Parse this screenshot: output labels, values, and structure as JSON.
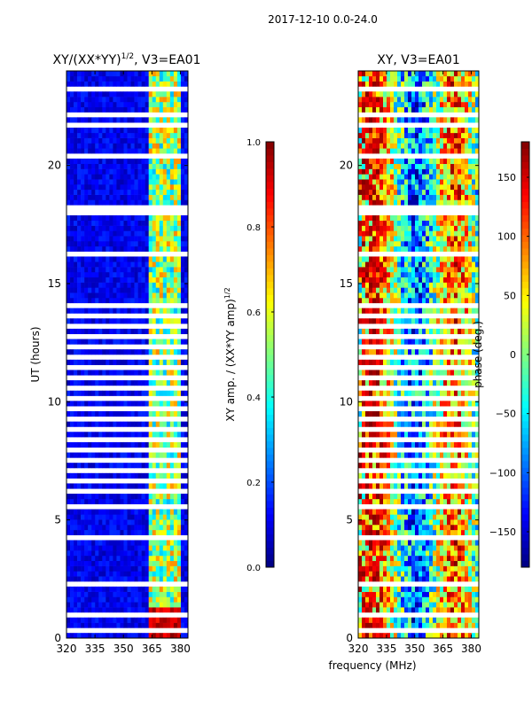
{
  "figure": {
    "suptitle": "2017-12-10 0.0-24.0",
    "shared_xlabel": "frequency (MHz)"
  },
  "chart_data": [
    {
      "type": "heatmap",
      "title": "XY/(XX*YY)",
      "title_superscript": "1/2",
      "title_suffix": ", V3=EA01",
      "xlabel": "",
      "ylabel": "UT (hours)",
      "xlim": [
        320,
        384
      ],
      "ylim": [
        0,
        24
      ],
      "xticks": [
        320,
        335,
        350,
        365,
        380
      ],
      "yticks": [
        0,
        5,
        10,
        15,
        20
      ],
      "colorbar": {
        "label": "XY amp. / (XX*YY amp)",
        "label_superscript": "1/2",
        "range": [
          0.0,
          1.0
        ],
        "ticks": [
          "0.0",
          "0.2",
          "0.4",
          "0.6",
          "0.8",
          "1.0"
        ],
        "ticks_values": [
          0.0,
          0.2,
          0.4,
          0.6,
          0.8,
          1.0
        ],
        "colormap": "jet"
      },
      "flagged_hours": [
        0.3,
        0.95,
        1.05,
        2.3,
        4.3,
        5.6,
        7.6,
        9.8,
        10.6,
        11.4,
        12.4,
        13.2,
        14.0,
        16.3,
        18.1,
        18.3,
        20.3,
        21.6,
        22.1,
        23.3
      ],
      "dense_flag_hours": [
        6.0,
        14.0
      ]
    },
    {
      "type": "heatmap",
      "title": "XY, V3=EA01",
      "xlabel": "frequency (MHz)",
      "ylabel": "",
      "xlim": [
        320,
        384
      ],
      "ylim": [
        0,
        24
      ],
      "xticks": [
        320,
        335,
        350,
        365,
        380
      ],
      "yticks": [
        0,
        5,
        10,
        15,
        20
      ],
      "colorbar": {
        "label": "phase (deg.)",
        "range": [
          -180,
          180
        ],
        "ticks": [
          "−150",
          "−100",
          "−50",
          "0",
          "50",
          "100",
          "150"
        ],
        "ticks_values": [
          -150,
          -100,
          -50,
          0,
          50,
          100,
          150
        ],
        "colormap": "jet"
      },
      "flagged_hours": [
        0.3,
        0.95,
        1.05,
        2.3,
        4.3,
        5.6,
        7.6,
        9.8,
        10.6,
        11.4,
        12.4,
        13.2,
        14.0,
        16.3,
        18.1,
        18.3,
        20.3,
        21.6,
        22.1,
        23.3
      ],
      "dense_flag_hours": [
        6.0,
        14.0
      ]
    }
  ]
}
